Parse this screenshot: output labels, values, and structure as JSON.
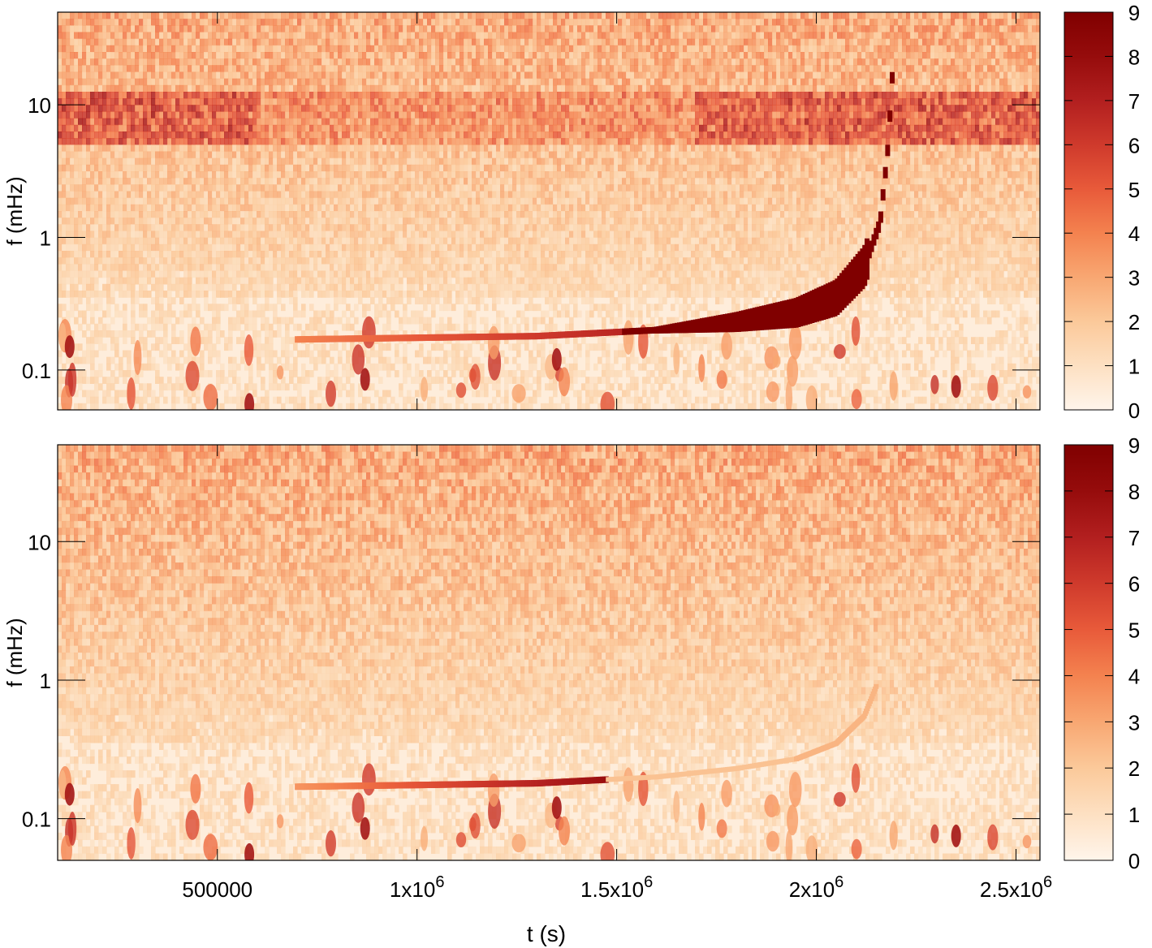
{
  "chart_data": [
    {
      "type": "heatmap",
      "xlabel": "",
      "ylabel": "f (mHz)",
      "xlim": [
        100000,
        2560000
      ],
      "ylim": [
        0.05,
        50
      ],
      "y_scale": "log",
      "x_ticks": [
        500000,
        1000000,
        1500000,
        2000000,
        2500000
      ],
      "x_tick_labels_visible": false,
      "y_ticks": [
        0.1,
        1,
        10
      ],
      "y_tick_labels": [
        "0.1",
        "1",
        "10"
      ],
      "colorbar": {
        "min": 0,
        "max": 9,
        "ticks": [
          "0",
          "1",
          "2",
          "3",
          "4",
          "5",
          "6",
          "7",
          "8",
          "9"
        ],
        "colors": [
          "#fff5eb",
          "#fde0c2",
          "#fbc99a",
          "#f8a772",
          "#f4824f",
          "#e85a3a",
          "#cf3a2c",
          "#b21f1f",
          "#960c0c",
          "#800000"
        ]
      },
      "features": [
        {
          "name": "chirp track",
          "t": [
            700000,
            1300000,
            1600000,
            1800000,
            1950000,
            2050000,
            2120000,
            2160000,
            2180000,
            2190000
          ],
          "f_mHz": [
            0.17,
            0.18,
            0.2,
            0.23,
            0.27,
            0.35,
            0.6,
            1.3,
            5,
            16
          ]
        },
        {
          "name": "noise band",
          "f_mHz": [
            5,
            12
          ],
          "t_peak": [
            100000,
            550000,
            1750000,
            2560000
          ]
        }
      ]
    },
    {
      "type": "heatmap",
      "xlabel": "t (s)",
      "ylabel": "f (mHz)",
      "xlim": [
        100000,
        2560000
      ],
      "ylim": [
        0.05,
        50
      ],
      "y_scale": "log",
      "x_ticks": [
        500000,
        1000000,
        1500000,
        2000000,
        2500000
      ],
      "x_tick_labels": [
        {
          "base": "500000",
          "exp": ""
        },
        {
          "base": "1x10",
          "exp": "6"
        },
        {
          "base": "1.5x10",
          "exp": "6"
        },
        {
          "base": "2x10",
          "exp": "6"
        },
        {
          "base": "2.5x10",
          "exp": "6"
        }
      ],
      "y_ticks": [
        0.1,
        1,
        10
      ],
      "y_tick_labels": [
        "0.1",
        "1",
        "10"
      ],
      "colorbar": {
        "min": 0,
        "max": 9,
        "ticks": [
          "0",
          "1",
          "2",
          "3",
          "4",
          "5",
          "6",
          "7",
          "8",
          "9"
        ],
        "colors": [
          "#fff5eb",
          "#fde0c2",
          "#fbc99a",
          "#f8a772",
          "#f4824f",
          "#e85a3a",
          "#cf3a2c",
          "#b21f1f",
          "#960c0c",
          "#800000"
        ]
      },
      "features": [
        {
          "name": "residual chirp track",
          "t": [
            700000,
            1300000,
            1600000,
            1800000,
            1950000
          ],
          "f_mHz": [
            0.17,
            0.18,
            0.2,
            0.23,
            0.27
          ]
        },
        {
          "name": "faint continuation",
          "t": [
            1950000,
            2050000,
            2120000,
            2150000
          ],
          "f_mHz": [
            0.27,
            0.35,
            0.55,
            0.9
          ]
        }
      ]
    }
  ]
}
